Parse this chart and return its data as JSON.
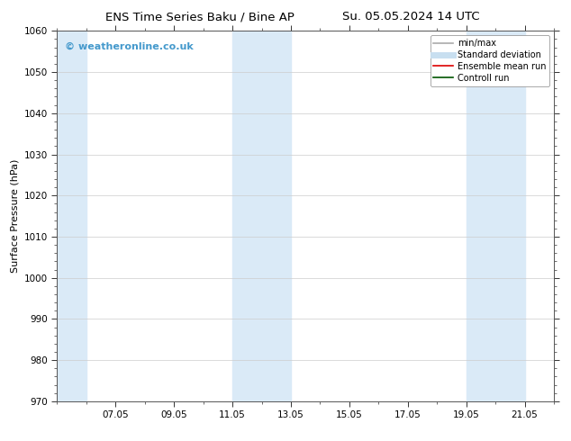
{
  "title_left": "ENS Time Series Baku / Bine AP",
  "title_right": "Su. 05.05.2024 14 UTC",
  "ylabel": "Surface Pressure (hPa)",
  "ylim": [
    970,
    1060
  ],
  "yticks": [
    970,
    980,
    990,
    1000,
    1010,
    1020,
    1030,
    1040,
    1050,
    1060
  ],
  "xtick_labels": [
    "07.05",
    "09.05",
    "11.05",
    "13.05",
    "15.05",
    "17.05",
    "19.05",
    "21.05"
  ],
  "xtick_positions": [
    2,
    4,
    6,
    8,
    10,
    12,
    14,
    16
  ],
  "x_min": 0,
  "x_max": 17,
  "background_color": "#ffffff",
  "plot_bg_color": "#ffffff",
  "band_color": "#daeaf7",
  "shaded_bands": [
    {
      "x_start": 0.0,
      "x_end": 1.0
    },
    {
      "x_start": 6.0,
      "x_end": 8.0
    },
    {
      "x_start": 14.0,
      "x_end": 16.0
    }
  ],
  "watermark": "© weatheronline.co.uk",
  "watermark_color": "#4499cc",
  "legend_items": [
    {
      "label": "min/max",
      "color": "#aaaaaa",
      "lw": 1.2
    },
    {
      "label": "Standard deviation",
      "color": "#c8dff0",
      "lw": 5
    },
    {
      "label": "Ensemble mean run",
      "color": "#dd0000",
      "lw": 1.2
    },
    {
      "label": "Controll run",
      "color": "#005500",
      "lw": 1.2
    }
  ],
  "title_fontsize": 9.5,
  "tick_fontsize": 7.5,
  "ylabel_fontsize": 8,
  "watermark_fontsize": 8,
  "legend_fontsize": 7
}
